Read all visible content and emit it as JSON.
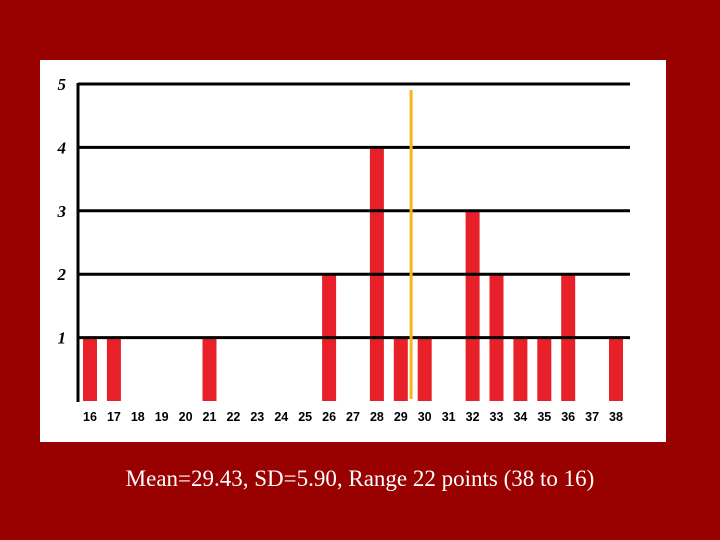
{
  "chart_data": {
    "type": "bar",
    "categories": [
      "16",
      "17",
      "18",
      "19",
      "20",
      "21",
      "22",
      "23",
      "24",
      "25",
      "26",
      "27",
      "28",
      "29",
      "30",
      "31",
      "32",
      "33",
      "34",
      "35",
      "36",
      "37",
      "38"
    ],
    "values": [
      1,
      1,
      0,
      0,
      0,
      1,
      0,
      0,
      0,
      0,
      2,
      0,
      4,
      1,
      1,
      0,
      3,
      2,
      1,
      1,
      2,
      0,
      1
    ],
    "ylim": [
      0,
      5
    ],
    "y_ticks": [
      "1",
      "2",
      "3",
      "4",
      "5"
    ],
    "grid": true,
    "mean_marker": 29.43,
    "colors": {
      "bar": "#e8202a",
      "mean_line": "#f2b71c",
      "grid": "#000000",
      "background": "#990000",
      "panel": "#ffffff"
    }
  },
  "caption": "Mean=29.43, SD=5.90, Range 22 points (38 to 16)"
}
